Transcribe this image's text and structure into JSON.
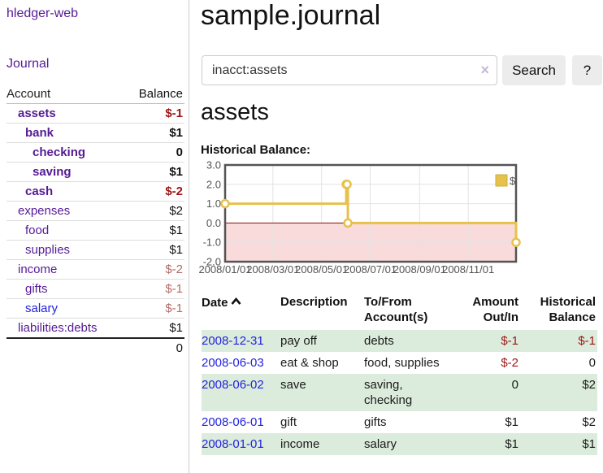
{
  "sidebar": {
    "brand": "hledger-web",
    "nav": {
      "journal": "Journal"
    },
    "accounts_table": {
      "headers": {
        "account": "Account",
        "balance": "Balance"
      },
      "rows": [
        {
          "account": "assets",
          "balance": "$-1"
        },
        {
          "account": "bank",
          "balance": "$1"
        },
        {
          "account": "checking",
          "balance": "0"
        },
        {
          "account": "saving",
          "balance": "$1"
        },
        {
          "account": "cash",
          "balance": "$-2"
        },
        {
          "account": "expenses",
          "balance": "$2"
        },
        {
          "account": "food",
          "balance": "$1"
        },
        {
          "account": "supplies",
          "balance": "$1"
        },
        {
          "account": "income",
          "balance": "$-2"
        },
        {
          "account": "gifts",
          "balance": "$-1"
        },
        {
          "account": "salary",
          "balance": "$-1"
        },
        {
          "account": "liabilities:debts",
          "balance": "$1"
        }
      ],
      "total": "0"
    }
  },
  "main": {
    "title": "sample.journal",
    "search": {
      "value": "inacct:assets",
      "clear_icon": "×",
      "search_button": "Search",
      "help_button": "?"
    },
    "account_heading": "assets",
    "chart_heading": "Historical Balance:"
  },
  "chart_data": {
    "type": "line",
    "step": true,
    "title": "Historical Balance",
    "x": [
      "2008-01-01",
      "2008-06-01",
      "2008-06-02",
      "2008-06-03",
      "2008-12-31"
    ],
    "values": [
      1,
      2,
      2,
      0,
      -1
    ],
    "xrange": [
      "2008-01-01",
      "2008-12-31"
    ],
    "ylim": [
      -2,
      3
    ],
    "yticks": [
      3.0,
      2.0,
      1.0,
      0.0,
      -1.0,
      -2.0
    ],
    "xtick_labels": [
      "2008/01/01",
      "2008/03/01",
      "2008/05/01",
      "2008/07/01",
      "2008/09/01",
      "2008/11/01"
    ],
    "grid": true,
    "legend": [
      {
        "label": "$",
        "color": "#e6c14c"
      }
    ],
    "legend_position": "top-right",
    "line_color": "#e6c14c",
    "negative_region_color": "#f9dbdb",
    "zero_line_color": "#8f1010"
  },
  "register": {
    "headers": {
      "date": "Date",
      "description": "Description",
      "accounts": "To/From Account(s)",
      "amount": "Amount Out/In",
      "balance": "Historical Balance"
    },
    "rows": [
      {
        "date": "2008-12-31",
        "description": "pay off",
        "accounts": "debts",
        "amount": "$-1",
        "balance": "$-1"
      },
      {
        "date": "2008-06-03",
        "description": "eat & shop",
        "accounts": "food, supplies",
        "amount": "$-2",
        "balance": "0"
      },
      {
        "date": "2008-06-02",
        "description": "save",
        "accounts": "saving, checking",
        "amount": "0",
        "balance": "$2"
      },
      {
        "date": "2008-06-01",
        "description": "gift",
        "accounts": "gifts",
        "amount": "$1",
        "balance": "$2"
      },
      {
        "date": "2008-01-01",
        "description": "income",
        "accounts": "salary",
        "amount": "$1",
        "balance": "$1"
      }
    ]
  },
  "colors": {
    "accent_purple": "#551a95",
    "link_blue": "#2222dd",
    "negative_strong": "#9d1414",
    "negative_soft": "#b36a6a",
    "row_highlight_green": "#dcecdc",
    "chart_line_gold": "#e6c14c",
    "chart_negative_pink": "#f9dbdb",
    "chart_zero_line": "#8f1010"
  }
}
